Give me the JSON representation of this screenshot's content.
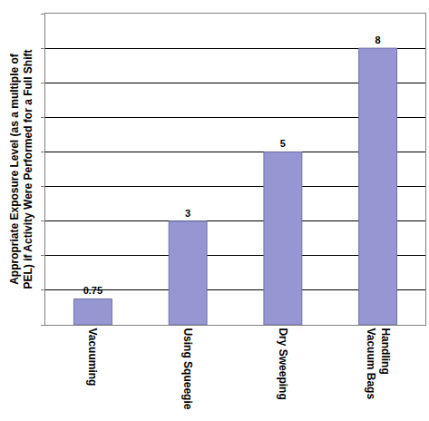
{
  "chart_data": {
    "type": "bar",
    "y_label": "Appropriate Exposure Level (as a multiple of PEL) if Activity Were Performed for a Full Shift",
    "categories": [
      "Vacuuming",
      "Using Squeegie",
      "Dry Sweeping",
      "Handling Vacuum Bags"
    ],
    "values": [
      0.75,
      3,
      5,
      8
    ],
    "color": "#9696d2",
    "ylim": [
      0,
      9
    ],
    "yticks": [
      0,
      1,
      2,
      3,
      4,
      5,
      6,
      7,
      8,
      9
    ],
    "grid": true,
    "data_labels": true,
    "tick_labels": "x"
  }
}
